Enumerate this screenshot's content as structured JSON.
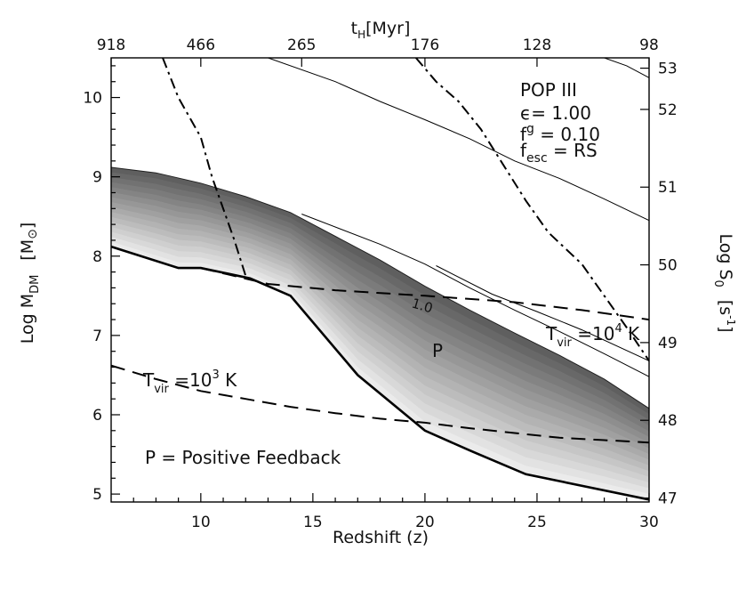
{
  "chart_data": {
    "type": "line",
    "x_axis": {
      "label": "Redshift (z)",
      "range": [
        6,
        30
      ],
      "ticks": [
        10,
        15,
        20,
        25,
        30
      ],
      "tick_labels": [
        "10",
        "15",
        "20",
        "25",
        "30"
      ]
    },
    "y_left_axis": {
      "label_main": "Log M",
      "label_sub": "DM",
      "label_unit": "[M",
      "label_unit_symbol": "⊙",
      "label_unit_close": "]",
      "range": [
        4.9,
        10.5
      ],
      "ticks": [
        5,
        6,
        7,
        8,
        9,
        10
      ],
      "tick_labels": [
        "5",
        "6",
        "7",
        "8",
        "9",
        "10"
      ]
    },
    "y_right_axis": {
      "label_main": "Log S",
      "label_sub": "0",
      "label_unit": "[s",
      "label_sup": "-1",
      "label_unit_close": "]",
      "ticks": [
        47,
        48,
        49,
        50,
        51,
        52,
        53
      ],
      "tick_labels": [
        "47",
        "48",
        "49",
        "50",
        "51",
        "52",
        "53"
      ],
      "tick_positions_left_units": [
        4.95,
        5.93,
        6.91,
        7.89,
        8.87,
        9.85,
        10.37
      ]
    },
    "top_axis": {
      "label_main": "t",
      "label_sub": "H",
      "label_unit": "[Myr]",
      "ticks_at_z": [
        6,
        10,
        14.5,
        20,
        25,
        30
      ],
      "tick_labels": [
        "918",
        "466",
        "265",
        "176",
        "128",
        "98"
      ]
    },
    "shaded_region": {
      "label": "P",
      "label_pos": [
        20.5,
        6.95
      ],
      "upper": [
        [
          6,
          9.12
        ],
        [
          8,
          9.05
        ],
        [
          10,
          8.92
        ],
        [
          12,
          8.75
        ],
        [
          14,
          8.55
        ],
        [
          16,
          8.25
        ],
        [
          18,
          7.95
        ],
        [
          20,
          7.62
        ],
        [
          22,
          7.32
        ],
        [
          24,
          7.03
        ],
        [
          26,
          6.75
        ],
        [
          28,
          6.45
        ],
        [
          30,
          6.08
        ]
      ],
      "lower": [
        [
          6,
          8.12
        ],
        [
          9,
          7.85
        ],
        [
          10,
          7.85
        ],
        [
          12.2,
          7.72
        ],
        [
          14,
          7.5
        ],
        [
          17,
          6.5
        ],
        [
          20,
          5.8
        ],
        [
          22,
          5.55
        ],
        [
          24.5,
          5.25
        ],
        [
          30,
          4.93
        ]
      ]
    },
    "series": [
      {
        "style": "thin",
        "points": [
          [
            14.5,
            8.53
          ],
          [
            18,
            8.15
          ],
          [
            20,
            7.9
          ],
          [
            22,
            7.6
          ],
          [
            24,
            7.32
          ],
          [
            26,
            7.05
          ],
          [
            28,
            6.77
          ],
          [
            30,
            6.48
          ]
        ]
      },
      {
        "style": "thin",
        "points": [
          [
            20.5,
            7.88
          ],
          [
            23,
            7.52
          ],
          [
            25,
            7.3
          ],
          [
            27,
            7.07
          ],
          [
            30,
            6.68
          ]
        ]
      },
      {
        "style": "thin",
        "points": [
          [
            13,
            10.5
          ],
          [
            16,
            10.2
          ],
          [
            18,
            9.95
          ],
          [
            20,
            9.72
          ],
          [
            22,
            9.48
          ],
          [
            24,
            9.2
          ],
          [
            26,
            8.98
          ],
          [
            28,
            8.72
          ],
          [
            30,
            8.45
          ]
        ]
      },
      {
        "style": "thin",
        "points": [
          [
            28,
            10.5
          ],
          [
            29,
            10.4
          ],
          [
            30,
            10.25
          ]
        ]
      },
      {
        "style": "dashdot",
        "points": [
          [
            8.3,
            10.5
          ],
          [
            9,
            10.0
          ],
          [
            10,
            9.5
          ],
          [
            10.5,
            9.0
          ],
          [
            11,
            8.6
          ],
          [
            11.5,
            8.2
          ],
          [
            12,
            7.75
          ]
        ]
      },
      {
        "style": "dashdot",
        "points": [
          [
            19.6,
            10.5
          ],
          [
            20.5,
            10.2
          ],
          [
            21.5,
            9.95
          ],
          [
            22.5,
            9.6
          ],
          [
            23.5,
            9.15
          ],
          [
            24.5,
            8.7
          ],
          [
            25.5,
            8.3
          ],
          [
            27,
            7.9
          ],
          [
            28,
            7.5
          ],
          [
            29,
            7.1
          ],
          [
            30,
            6.68
          ]
        ]
      },
      {
        "style": "dashed",
        "label": "T",
        "label_sub": "vir",
        "label_rest": " =10",
        "label_sup": "4",
        "label_unit": " K",
        "points": [
          [
            10,
            7.85
          ],
          [
            13,
            7.65
          ],
          [
            16,
            7.57
          ],
          [
            20,
            7.5
          ],
          [
            24,
            7.42
          ],
          [
            27,
            7.32
          ],
          [
            30,
            7.2
          ]
        ]
      },
      {
        "style": "dashed",
        "label": "T",
        "label_sub": "vir",
        "label_rest": " =10",
        "label_sup": "3",
        "label_unit": " K",
        "points": [
          [
            6,
            6.62
          ],
          [
            8,
            6.45
          ],
          [
            10,
            6.3
          ],
          [
            12,
            6.2
          ],
          [
            14,
            6.1
          ],
          [
            16,
            6.02
          ],
          [
            18,
            5.95
          ],
          [
            20,
            5.9
          ],
          [
            22,
            5.83
          ],
          [
            24,
            5.77
          ],
          [
            26,
            5.71
          ],
          [
            28,
            5.68
          ],
          [
            30,
            5.65
          ]
        ]
      }
    ],
    "annotations": {
      "pop_title": "POP III",
      "eps_line": "ϵ=  1.00",
      "fg_main": "f",
      "fg_sub": "g",
      "fg_rest": " =  0.10",
      "fesc_main": "f",
      "fesc_sub": "esc",
      "fesc_rest": "  = RS",
      "curve_label": "1.0",
      "legend_note": "P  =  Positive Feedback",
      "tvir4_label_parts": [
        "T",
        "vir",
        " =10",
        "4",
        " K"
      ],
      "tvir3_label_parts": [
        "T",
        "vir",
        " =10",
        "3",
        " K"
      ]
    }
  }
}
